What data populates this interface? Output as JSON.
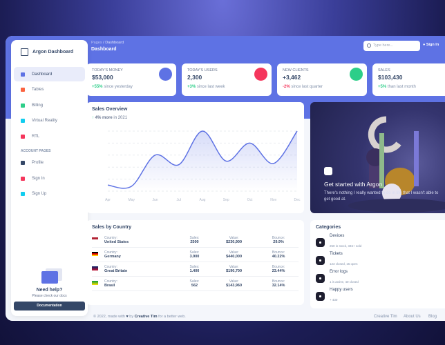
{
  "brand": "Argon Dashboard",
  "sidebar": {
    "items": [
      {
        "label": "Dashboard",
        "icon": "tv-icon",
        "color": "#5e72e4",
        "active": true
      },
      {
        "label": "Tables",
        "icon": "calendar-icon",
        "color": "#fb6340"
      },
      {
        "label": "Billing",
        "icon": "credit-card-icon",
        "color": "#2dce89"
      },
      {
        "label": "Virtual Reality",
        "icon": "app-icon",
        "color": "#11cdef"
      },
      {
        "label": "RTL",
        "icon": "world-icon",
        "color": "#f5365c"
      }
    ],
    "section": "ACCOUNT PAGES",
    "account": [
      {
        "label": "Profile",
        "icon": "user-icon",
        "color": "#344767"
      },
      {
        "label": "Sign In",
        "icon": "copy-icon",
        "color": "#f5365c"
      },
      {
        "label": "Sign Up",
        "icon": "collection-icon",
        "color": "#11cdef"
      }
    ],
    "help": {
      "title": "Need help?",
      "text": "Please check our docs",
      "button": "Documentation"
    }
  },
  "header": {
    "breadcrumb_root": "Pages",
    "breadcrumb_sep": "/",
    "breadcrumb_current": "Dashboard",
    "title": "Dashboard",
    "search_placeholder": "Type here...",
    "sign_in": "Sign In"
  },
  "stats": [
    {
      "label": "TODAY'S MONEY",
      "value": "$53,000",
      "change": "+55%",
      "note": "since yesterday",
      "color": "#5e72e4",
      "trend": "pos"
    },
    {
      "label": "TODAY'S USERS",
      "value": "2,300",
      "change": "+3%",
      "note": "since last week",
      "color": "#f5365c",
      "trend": "pos"
    },
    {
      "label": "NEW CLIENTS",
      "value": "+3,462",
      "change": "-2%",
      "note": "since last quarter",
      "color": "#2dce89",
      "trend": "neg"
    },
    {
      "label": "SALES",
      "value": "$103,430",
      "change": "+5%",
      "note": "than last month",
      "color": "#fb6340",
      "trend": "pos"
    }
  ],
  "chart_data": {
    "type": "line",
    "title": "Sales Overview",
    "subtitle_bold": "4% more",
    "subtitle": "in 2021",
    "categories": [
      "Apr",
      "May",
      "Jun",
      "Jul",
      "Aug",
      "Sep",
      "Oct",
      "Nov",
      "Dec"
    ],
    "values": [
      50,
      40,
      300,
      220,
      500,
      250,
      400,
      230,
      500
    ],
    "ylim": [
      0,
      500
    ],
    "grid": true,
    "color": "#5e72e4"
  },
  "hero": {
    "title": "Get started with Argon",
    "text": "There's nothing I really wanted to do in life that I wasn't able to get good at."
  },
  "countries": {
    "title": "Sales by Country",
    "labels": {
      "country": "Country:",
      "sales": "Sales:",
      "value": "Value:",
      "bounce": "Bounce:"
    },
    "rows": [
      {
        "country": "United States",
        "sales": "2500",
        "value": "$230,900",
        "bounce": "29.9%",
        "flag": "us"
      },
      {
        "country": "Germany",
        "sales": "3.900",
        "value": "$440,000",
        "bounce": "40.22%",
        "flag": "de"
      },
      {
        "country": "Great Britain",
        "sales": "1.400",
        "value": "$190,700",
        "bounce": "23.44%",
        "flag": "gb"
      },
      {
        "country": "Brasil",
        "sales": "562",
        "value": "$143,960",
        "bounce": "32.14%",
        "flag": "br"
      }
    ]
  },
  "categories": {
    "title": "Categories",
    "items": [
      {
        "name": "Devices",
        "desc": "250 in stock, 346+ sold"
      },
      {
        "name": "Tickets",
        "desc": "123 closed, 15 open"
      },
      {
        "name": "Error logs",
        "desc": "1 is active, 40 closed"
      },
      {
        "name": "Happy users",
        "desc": "+ 430"
      }
    ]
  },
  "footer": {
    "prefix": "© 2022, made with",
    "by": "by",
    "author": "Creative Tim",
    "suffix": "for a better web.",
    "links": [
      "Creative Tim",
      "About Us",
      "Blog"
    ]
  }
}
